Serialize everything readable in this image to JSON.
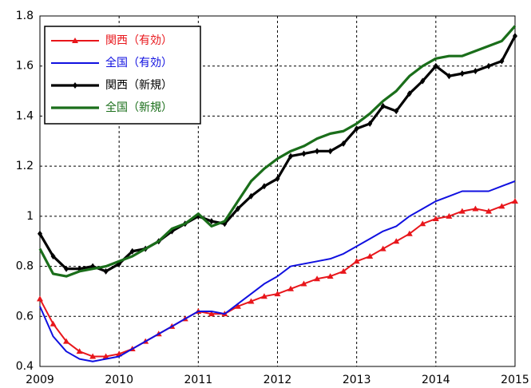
{
  "chart_data": {
    "type": "line",
    "x": [
      2009,
      2009.167,
      2009.333,
      2009.5,
      2009.667,
      2009.833,
      2010,
      2010.167,
      2010.333,
      2010.5,
      2010.667,
      2010.833,
      2011,
      2011.167,
      2011.333,
      2011.5,
      2011.667,
      2011.833,
      2012,
      2012.167,
      2012.333,
      2012.5,
      2012.667,
      2012.833,
      2013,
      2013.167,
      2013.333,
      2013.5,
      2013.667,
      2013.833,
      2014,
      2014.167,
      2014.333,
      2014.5,
      2014.667,
      2014.833,
      2015
    ],
    "series": [
      {
        "name": "関西（有効）",
        "color": "#e8161b",
        "marker": "triangle",
        "values": [
          0.67,
          0.57,
          0.5,
          0.46,
          0.44,
          0.44,
          0.45,
          0.47,
          0.5,
          0.53,
          0.56,
          0.59,
          0.62,
          0.61,
          0.61,
          0.64,
          0.66,
          0.68,
          0.69,
          0.71,
          0.73,
          0.75,
          0.76,
          0.78,
          0.82,
          0.84,
          0.87,
          0.9,
          0.93,
          0.97,
          0.99,
          1.0,
          1.02,
          1.03,
          1.02,
          1.04,
          1.06
        ]
      },
      {
        "name": "全国（有効）",
        "color": "#1010e0",
        "marker": "none",
        "values": [
          0.64,
          0.52,
          0.46,
          0.43,
          0.42,
          0.43,
          0.44,
          0.47,
          0.5,
          0.53,
          0.56,
          0.59,
          0.62,
          0.62,
          0.61,
          0.65,
          0.69,
          0.73,
          0.76,
          0.8,
          0.81,
          0.82,
          0.83,
          0.85,
          0.88,
          0.91,
          0.94,
          0.96,
          1.0,
          1.03,
          1.06,
          1.08,
          1.1,
          1.1,
          1.1,
          1.12,
          1.14
        ]
      },
      {
        "name": "関西（新規）",
        "color": "#000000",
        "marker": "diamond",
        "values": [
          0.93,
          0.84,
          0.79,
          0.79,
          0.8,
          0.78,
          0.81,
          0.86,
          0.87,
          0.9,
          0.94,
          0.97,
          1.0,
          0.98,
          0.97,
          1.03,
          1.08,
          1.12,
          1.15,
          1.24,
          1.25,
          1.26,
          1.26,
          1.29,
          1.35,
          1.37,
          1.44,
          1.42,
          1.49,
          1.54,
          1.6,
          1.56,
          1.57,
          1.58,
          1.6,
          1.62,
          1.72
        ]
      },
      {
        "name": "全国（新規）",
        "color": "#1a6e1a",
        "marker": "none",
        "values": [
          0.87,
          0.77,
          0.76,
          0.78,
          0.79,
          0.8,
          0.82,
          0.84,
          0.87,
          0.9,
          0.95,
          0.97,
          1.01,
          0.96,
          0.98,
          1.06,
          1.14,
          1.19,
          1.23,
          1.26,
          1.28,
          1.31,
          1.33,
          1.34,
          1.37,
          1.41,
          1.46,
          1.5,
          1.56,
          1.6,
          1.63,
          1.64,
          1.64,
          1.66,
          1.68,
          1.7,
          1.76
        ]
      }
    ],
    "xlim": [
      2009,
      2015
    ],
    "xticks": [
      2009,
      2010,
      2011,
      2012,
      2013,
      2014,
      2015
    ],
    "ylim": [
      0.4,
      1.8
    ],
    "yticks": [
      0.4,
      0.6,
      0.8,
      1,
      1.2,
      1.4,
      1.6,
      1.8
    ],
    "grid": true,
    "legend": "upper-left"
  }
}
